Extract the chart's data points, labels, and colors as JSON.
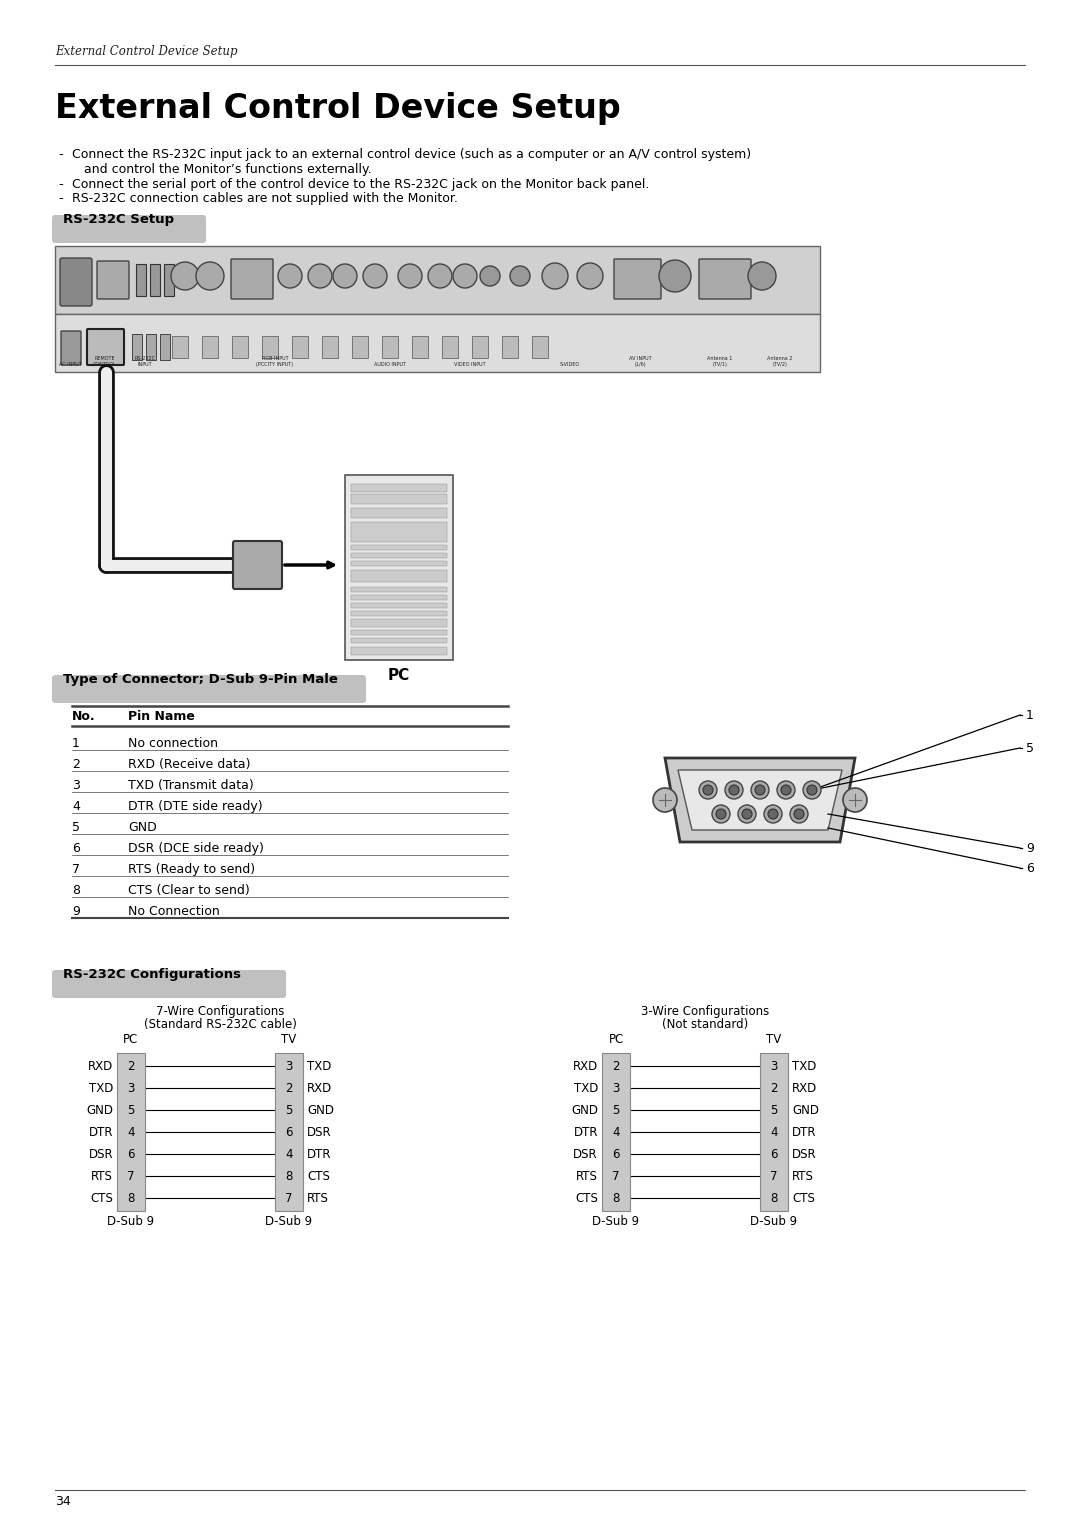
{
  "page_bg": "#ffffff",
  "header_italic": "External Control Device Setup",
  "main_title": "External Control Device Setup",
  "bullet1_line1": "Connect the RS-232C input jack to an external control device (such as a computer or an A/V control system)",
  "bullet1_line2": "and control the Monitor’s functions externally.",
  "bullet2": "Connect the serial port of the control device to the RS-232C jack on the Monitor back panel.",
  "bullet3": "RS-232C connection cables are not supplied with the Monitor.",
  "section1_label": "RS-232C Setup",
  "section2_label": "Type of Connector; D-Sub 9-Pin Male",
  "section3_label": "RS-232C Configurations",
  "table_headers": [
    "No.",
    "Pin Name"
  ],
  "table_rows": [
    [
      "1",
      "No connection"
    ],
    [
      "2",
      "RXD (Receive data)"
    ],
    [
      "3",
      "TXD (Transmit data)"
    ],
    [
      "4",
      "DTR (DTE side ready)"
    ],
    [
      "5",
      "GND"
    ],
    [
      "6",
      "DSR (DCE side ready)"
    ],
    [
      "7",
      "RTS (Ready to send)"
    ],
    [
      "8",
      "CTS (Clear to send)"
    ],
    [
      "9",
      "No Connection"
    ]
  ],
  "wire7_title": "7-Wire Configurations",
  "wire7_subtitle": "(Standard RS-232C cable)",
  "wire3_title": "3-Wire Configurations",
  "wire3_subtitle": "(Not standard)",
  "dsub9_label": "D-Sub 9",
  "page_num": "34",
  "wire7_pc_labels": [
    "RXD",
    "TXD",
    "GND",
    "DTR",
    "DSR",
    "RTS",
    "CTS"
  ],
  "wire7_pc_pins": [
    2,
    3,
    5,
    4,
    6,
    7,
    8
  ],
  "wire7_tv_pins": [
    3,
    2,
    5,
    6,
    4,
    8,
    7
  ],
  "wire7_tv_labels": [
    "TXD",
    "RXD",
    "GND",
    "DSR",
    "DTR",
    "CTS",
    "RTS"
  ],
  "wire3_pc_labels": [
    "RXD",
    "TXD",
    "GND",
    "DTR",
    "DSR",
    "RTS",
    "CTS"
  ],
  "wire3_pc_pins": [
    2,
    3,
    5,
    4,
    6,
    7,
    8
  ],
  "wire3_tv_pins": [
    3,
    2,
    5,
    4,
    6,
    7,
    8
  ],
  "wire3_tv_labels": [
    "TXD",
    "RXD",
    "GND",
    "DTR",
    "DSR",
    "RTS",
    "CTS"
  ],
  "section_badge_color": "#c0c0c0",
  "table_line_color": "#444444",
  "wire_color": "#000000",
  "box_fill": "#c8c8c8"
}
